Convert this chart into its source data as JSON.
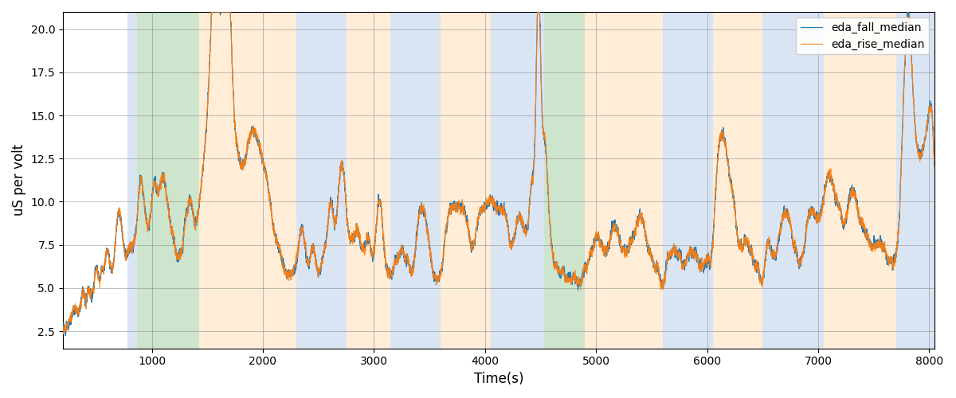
{
  "xlabel": "Time(s)",
  "ylabel": "uS per volt",
  "xlim": [
    200,
    8050
  ],
  "ylim": [
    1.5,
    21
  ],
  "yticks": [
    2.5,
    5.0,
    7.5,
    10.0,
    12.5,
    15.0,
    17.5,
    20.0
  ],
  "xticks": [
    1000,
    2000,
    3000,
    4000,
    5000,
    6000,
    7000,
    8000
  ],
  "legend_labels": [
    "eda_fall_median",
    "eda_rise_median"
  ],
  "line_colors": [
    "#1f77b4",
    "#ff7f0e"
  ],
  "line_width": 0.8,
  "background_bands": [
    {
      "xmin": 780,
      "xmax": 870,
      "color": "#aec6e8",
      "alpha": 0.45
    },
    {
      "xmin": 870,
      "xmax": 1430,
      "color": "#90c490",
      "alpha": 0.45
    },
    {
      "xmin": 1430,
      "xmax": 2300,
      "color": "#ffd9a8",
      "alpha": 0.45
    },
    {
      "xmin": 2300,
      "xmax": 2750,
      "color": "#aec6e8",
      "alpha": 0.45
    },
    {
      "xmin": 2750,
      "xmax": 3150,
      "color": "#ffd9a8",
      "alpha": 0.45
    },
    {
      "xmin": 3150,
      "xmax": 3600,
      "color": "#aec6e8",
      "alpha": 0.45
    },
    {
      "xmin": 3600,
      "xmax": 4050,
      "color": "#ffd9a8",
      "alpha": 0.45
    },
    {
      "xmin": 4050,
      "xmax": 4430,
      "color": "#aec6e8",
      "alpha": 0.45
    },
    {
      "xmin": 4430,
      "xmax": 4530,
      "color": "#aec6e8",
      "alpha": 0.45
    },
    {
      "xmin": 4530,
      "xmax": 4900,
      "color": "#90c490",
      "alpha": 0.45
    },
    {
      "xmin": 4900,
      "xmax": 5600,
      "color": "#ffd9a8",
      "alpha": 0.45
    },
    {
      "xmin": 5600,
      "xmax": 6050,
      "color": "#aec6e8",
      "alpha": 0.45
    },
    {
      "xmin": 6050,
      "xmax": 6500,
      "color": "#ffd9a8",
      "alpha": 0.45
    },
    {
      "xmin": 6500,
      "xmax": 7050,
      "color": "#aec6e8",
      "alpha": 0.45
    },
    {
      "xmin": 7050,
      "xmax": 7700,
      "color": "#ffd9a8",
      "alpha": 0.45
    },
    {
      "xmin": 7700,
      "xmax": 8050,
      "color": "#aec6e8",
      "alpha": 0.45
    }
  ],
  "seed": 42
}
